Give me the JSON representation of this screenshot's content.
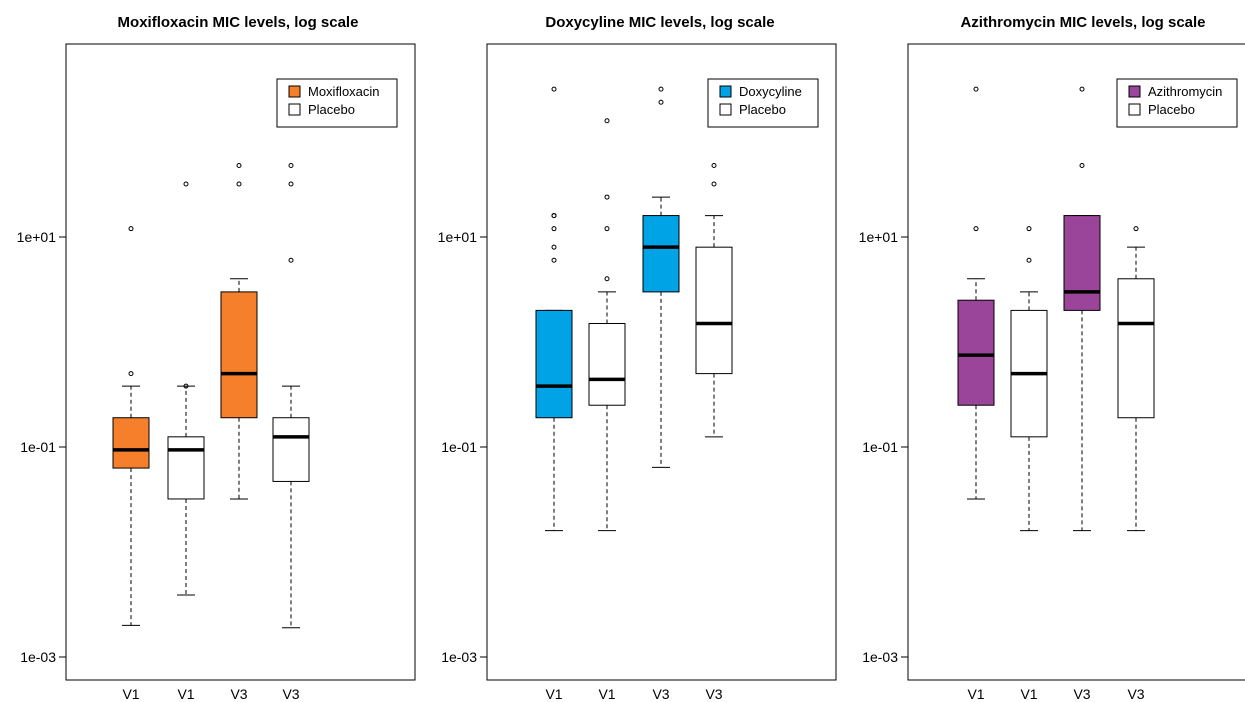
{
  "chart_data": [
    {
      "type": "boxplot",
      "title": "Moxifloxacin MIC levels, log scale",
      "y_scale": "log10",
      "ylim": [
        0.0006,
        800
      ],
      "y_ticks": [
        0.001,
        0.1,
        10
      ],
      "y_tick_labels": [
        "1e-03",
        "1e-01",
        "1e+01"
      ],
      "categories": [
        "V1",
        "V1",
        "V3",
        "V3"
      ],
      "legend": {
        "position": "top-right",
        "entries": [
          {
            "label": "Moxifloxacin",
            "color": "#F57F2B"
          },
          {
            "label": "Placebo",
            "color": "#FFFFFF"
          }
        ]
      },
      "boxes": [
        {
          "category": "V1",
          "group": "Moxifloxacin",
          "color": "#F57F2B",
          "whisker_low": 0.002,
          "q1": 0.063,
          "median": 0.094,
          "q3": 0.19,
          "whisker_high": 0.38,
          "outliers": [
            12,
            0.5
          ]
        },
        {
          "category": "V1",
          "group": "Placebo",
          "color": "#FFFFFF",
          "whisker_low": 0.0039,
          "q1": 0.032,
          "median": 0.094,
          "q3": 0.125,
          "whisker_high": 0.38,
          "outliers": [
            32,
            0.38
          ]
        },
        {
          "category": "V3",
          "group": "Moxifloxacin",
          "color": "#F57F2B",
          "whisker_low": 0.032,
          "q1": 0.19,
          "median": 0.5,
          "q3": 3,
          "whisker_high": 4,
          "outliers": [
            48,
            32
          ]
        },
        {
          "category": "V3",
          "group": "Placebo",
          "color": "#FFFFFF",
          "whisker_low": 0.0019,
          "q1": 0.047,
          "median": 0.125,
          "q3": 0.19,
          "whisker_high": 0.38,
          "outliers": [
            48,
            32,
            6
          ]
        }
      ]
    },
    {
      "type": "boxplot",
      "title": "Doxycyline MIC levels, log scale",
      "y_scale": "log10",
      "ylim": [
        0.0006,
        800
      ],
      "y_ticks": [
        0.001,
        0.1,
        10
      ],
      "y_tick_labels": [
        "1e-03",
        "1e-01",
        "1e+01"
      ],
      "categories": [
        "V1",
        "V1",
        "V3",
        "V3"
      ],
      "legend": {
        "position": "top-right",
        "entries": [
          {
            "label": "Doxycyline",
            "color": "#00A3E6"
          },
          {
            "label": "Placebo",
            "color": "#FFFFFF"
          }
        ]
      },
      "boxes": [
        {
          "category": "V1",
          "group": "Doxycyline",
          "color": "#00A3E6",
          "whisker_low": 0.016,
          "q1": 0.19,
          "median": 0.38,
          "q3": 2,
          "whisker_high": 2,
          "outliers": [
            256,
            16,
            16,
            12,
            8,
            6
          ]
        },
        {
          "category": "V1",
          "group": "Placebo",
          "color": "#FFFFFF",
          "whisker_low": 0.016,
          "q1": 0.25,
          "median": 0.44,
          "q3": 1.5,
          "whisker_high": 3,
          "outliers": [
            128,
            24,
            12,
            4
          ]
        },
        {
          "category": "V3",
          "group": "Doxycyline",
          "color": "#00A3E6",
          "whisker_low": 0.064,
          "q1": 3,
          "median": 8,
          "q3": 16,
          "whisker_high": 24,
          "outliers": [
            256,
            192
          ]
        },
        {
          "category": "V3",
          "group": "Placebo",
          "color": "#FFFFFF",
          "whisker_low": 0.125,
          "q1": 0.5,
          "median": 1.5,
          "q3": 8,
          "whisker_high": 16,
          "outliers": [
            48,
            32
          ]
        }
      ]
    },
    {
      "type": "boxplot",
      "title": "Azithromycin MIC levels, log scale",
      "y_scale": "log10",
      "ylim": [
        0.0006,
        800
      ],
      "y_ticks": [
        0.001,
        0.1,
        10
      ],
      "y_tick_labels": [
        "1e-03",
        "1e-01",
        "1e+01"
      ],
      "categories": [
        "V1",
        "V1",
        "V3",
        "V3"
      ],
      "legend": {
        "position": "top-right",
        "entries": [
          {
            "label": "Azithromycin",
            "color": "#9A449A"
          },
          {
            "label": "Placebo",
            "color": "#FFFFFF"
          }
        ]
      },
      "boxes": [
        {
          "category": "V1",
          "group": "Azithromycin",
          "color": "#9A449A",
          "whisker_low": 0.032,
          "q1": 0.25,
          "median": 0.75,
          "q3": 2.5,
          "whisker_high": 4,
          "outliers": [
            256,
            12
          ]
        },
        {
          "category": "V1",
          "group": "Placebo",
          "color": "#FFFFFF",
          "whisker_low": 0.016,
          "q1": 0.125,
          "median": 0.5,
          "q3": 2,
          "whisker_high": 3,
          "outliers": [
            12,
            6
          ]
        },
        {
          "category": "V3",
          "group": "Azithromycin",
          "color": "#9A449A",
          "whisker_low": 0.016,
          "q1": 2,
          "median": 3,
          "q3": 16,
          "whisker_high": 16,
          "outliers": [
            256,
            48
          ]
        },
        {
          "category": "V3",
          "group": "Placebo",
          "color": "#FFFFFF",
          "whisker_low": 0.016,
          "q1": 0.19,
          "median": 1.5,
          "q3": 4,
          "whisker_high": 8,
          "outliers": [
            12
          ]
        }
      ]
    }
  ]
}
